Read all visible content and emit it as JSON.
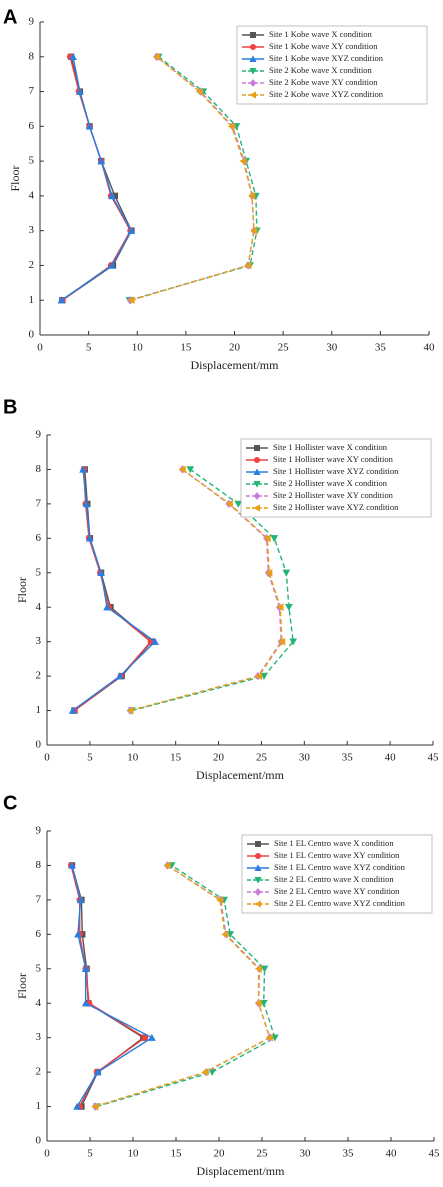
{
  "chart_data": [
    {
      "type": "line",
      "panel": "A",
      "x_label": "Displacement/mm",
      "y_label": "Floor",
      "xlim": [
        0,
        40
      ],
      "xticks": [
        0,
        5,
        10,
        15,
        20,
        25,
        30,
        35,
        40
      ],
      "ylim": [
        0,
        9
      ],
      "yticks": [
        0,
        1,
        2,
        3,
        4,
        5,
        6,
        7,
        8,
        9
      ],
      "legend": "upper right",
      "y": [
        1,
        2,
        3,
        4,
        5,
        6,
        7,
        8
      ],
      "series": [
        {
          "name": "Site 1 Kobe wave X condition",
          "color": "#555555",
          "marker": "square",
          "dashed": false,
          "x": [
            2.3,
            7.5,
            9.4,
            7.7,
            6.3,
            5.1,
            4.1,
            3.2
          ]
        },
        {
          "name": "Site 1 Kobe wave XY condition",
          "color": "#f04040",
          "marker": "circle",
          "dashed": false,
          "x": [
            2.3,
            7.3,
            9.3,
            7.3,
            6.3,
            5.1,
            4.0,
            3.1
          ]
        },
        {
          "name": "Site 1 Kobe wave XYZ condition",
          "color": "#2a7de1",
          "marker": "triangle-up",
          "dashed": false,
          "x": [
            2.2,
            7.4,
            9.4,
            7.4,
            6.3,
            5.1,
            4.1,
            3.4
          ]
        },
        {
          "name": "Site 2 Kobe wave X condition",
          "color": "#22b573",
          "marker": "triangle-down",
          "dashed": true,
          "x": [
            9.2,
            21.6,
            22.3,
            22.2,
            21.2,
            20.2,
            16.8,
            12.2
          ]
        },
        {
          "name": "Site 2 Kobe wave XY condition",
          "color": "#c77ddb",
          "marker": "diamond",
          "dashed": true,
          "x": [
            9.3,
            21.4,
            22.0,
            21.8,
            21.0,
            19.8,
            16.5,
            12.0
          ]
        },
        {
          "name": "Site 2 Kobe wave XYZ condition",
          "color": "#e6a117",
          "marker": "triangle-left",
          "dashed": true,
          "x": [
            9.4,
            21.4,
            22.0,
            21.8,
            20.9,
            19.7,
            16.4,
            12.0
          ]
        }
      ]
    },
    {
      "type": "line",
      "panel": "B",
      "x_label": "Displacement/mm",
      "y_label": "Floor",
      "xlim": [
        0,
        45
      ],
      "xticks": [
        0,
        5,
        10,
        15,
        20,
        25,
        30,
        35,
        40,
        45
      ],
      "ylim": [
        0,
        9
      ],
      "yticks": [
        0,
        1,
        2,
        3,
        4,
        5,
        6,
        7,
        8,
        9
      ],
      "legend": "upper right",
      "y": [
        1,
        2,
        3,
        4,
        5,
        6,
        7,
        8
      ],
      "series": [
        {
          "name": "Site 1 Hollister wave X condition",
          "color": "#555555",
          "marker": "square",
          "dashed": false,
          "x": [
            3.2,
            8.7,
            12.2,
            7.4,
            6.3,
            5.0,
            4.7,
            4.4
          ]
        },
        {
          "name": "Site 1 Hollister wave XY condition",
          "color": "#f04040",
          "marker": "circle",
          "dashed": false,
          "x": [
            3.2,
            8.6,
            12.1,
            7.2,
            6.2,
            4.9,
            4.5,
            4.3
          ]
        },
        {
          "name": "Site 1 Hollister wave XYZ condition",
          "color": "#2a7de1",
          "marker": "triangle-up",
          "dashed": false,
          "x": [
            3.0,
            8.5,
            12.6,
            7.0,
            6.3,
            5.0,
            4.6,
            4.2
          ]
        },
        {
          "name": "Site 2 Hollister wave X condition",
          "color": "#22b573",
          "marker": "triangle-down",
          "dashed": true,
          "x": [
            9.9,
            25.3,
            28.7,
            28.2,
            27.9,
            26.5,
            22.3,
            16.7
          ]
        },
        {
          "name": "Site 2 Hollister wave XY condition",
          "color": "#c77ddb",
          "marker": "diamond",
          "dashed": true,
          "x": [
            9.7,
            24.6,
            27.3,
            27.1,
            25.8,
            25.6,
            21.2,
            15.8
          ]
        },
        {
          "name": "Site 2 Hollister wave XYZ condition",
          "color": "#e6a117",
          "marker": "triangle-left",
          "dashed": true,
          "x": [
            9.7,
            24.7,
            27.4,
            27.2,
            25.9,
            25.7,
            21.3,
            15.8
          ]
        }
      ]
    },
    {
      "type": "line",
      "panel": "C",
      "x_label": "Displacement/mm",
      "y_label": "Floor",
      "xlim": [
        0,
        45
      ],
      "xticks": [
        0,
        5,
        10,
        15,
        20,
        25,
        30,
        35,
        40,
        45
      ],
      "ylim": [
        0,
        9
      ],
      "yticks": [
        0,
        1,
        2,
        3,
        4,
        5,
        6,
        7,
        8,
        9
      ],
      "legend": "upper right",
      "y": [
        1,
        2,
        3,
        4,
        5,
        6,
        7,
        8
      ],
      "series": [
        {
          "name": "Site 1 EL Centro wave X condition",
          "color": "#555555",
          "marker": "square",
          "dashed": false,
          "x": [
            4.0,
            5.9,
            11.2,
            4.8,
            4.6,
            4.1,
            4.0,
            2.9
          ]
        },
        {
          "name": "Site 1 EL Centro wave XY condition",
          "color": "#f04040",
          "marker": "circle",
          "dashed": false,
          "x": [
            3.8,
            5.8,
            11.4,
            4.9,
            4.5,
            3.8,
            3.8,
            2.8
          ]
        },
        {
          "name": "Site 1 EL Centro wave XYZ condition",
          "color": "#2a7de1",
          "marker": "triangle-up",
          "dashed": false,
          "x": [
            3.5,
            5.9,
            12.2,
            4.5,
            4.5,
            3.6,
            3.9,
            2.9
          ]
        },
        {
          "name": "Site 2 EL Centro wave X condition",
          "color": "#22b573",
          "marker": "triangle-down",
          "dashed": true,
          "x": [
            5.8,
            19.2,
            26.5,
            25.2,
            25.3,
            21.3,
            20.6,
            14.5
          ]
        },
        {
          "name": "Site 2 EL Centro wave XY condition",
          "color": "#c77ddb",
          "marker": "diamond",
          "dashed": true,
          "x": [
            5.6,
            18.5,
            25.9,
            24.6,
            24.7,
            20.8,
            20.2,
            14.0
          ]
        },
        {
          "name": "Site 2 EL Centro wave XYZ condition",
          "color": "#e6a117",
          "marker": "triangle-left",
          "dashed": true,
          "x": [
            5.6,
            18.4,
            25.9,
            24.6,
            24.6,
            20.7,
            20.1,
            14.0
          ]
        }
      ]
    }
  ]
}
